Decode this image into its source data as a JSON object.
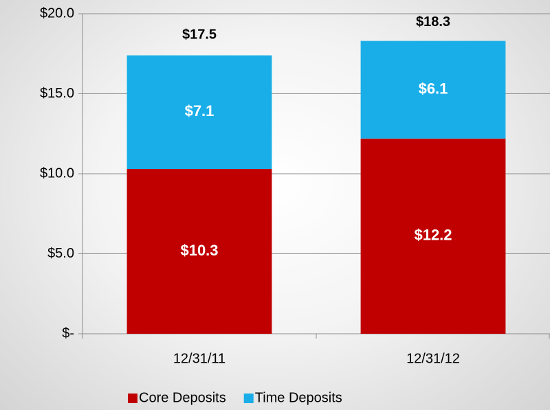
{
  "chart_data": {
    "type": "stacked-bar",
    "categories": [
      "12/31/11",
      "12/31/12"
    ],
    "series": [
      {
        "name": "Core Deposits",
        "color": "#c00000",
        "values": [
          10.3,
          12.2
        ],
        "value_labels": [
          "$10.3",
          "$12.2"
        ]
      },
      {
        "name": "Time Deposits",
        "color": "#1aaee8",
        "values": [
          7.1,
          6.1
        ],
        "value_labels": [
          "$7.1",
          "$6.1"
        ]
      }
    ],
    "totals": [
      17.5,
      18.3
    ],
    "total_labels": [
      "$17.5",
      "$18.3"
    ],
    "ylim": [
      0,
      20
    ],
    "yticks": [
      {
        "value": 0,
        "label": "$-"
      },
      {
        "value": 5,
        "label": "$5.0"
      },
      {
        "value": 10,
        "label": "$10.0"
      },
      {
        "value": 15,
        "label": "$15.0"
      },
      {
        "value": 20,
        "label": "$20.0"
      }
    ],
    "grid": true,
    "legend": "bottom"
  }
}
